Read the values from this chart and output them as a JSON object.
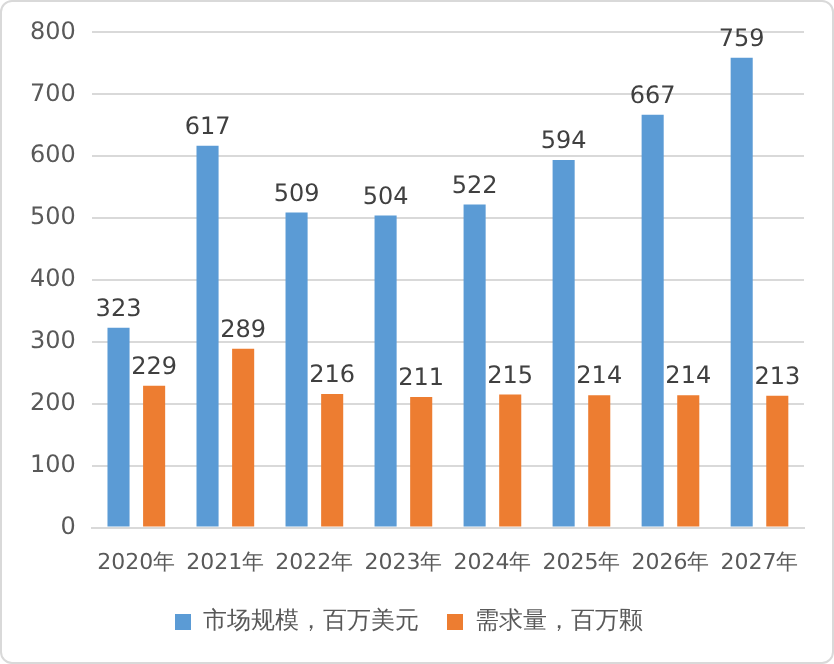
{
  "chart_data": {
    "type": "bar",
    "categories": [
      "2020年",
      "2021年",
      "2022年",
      "2023年",
      "2024年",
      "2025年",
      "2026年",
      "2027年"
    ],
    "series": [
      {
        "name": "市场规模，百万美元",
        "color": "#5b9bd5",
        "values": [
          323,
          617,
          509,
          504,
          522,
          594,
          667,
          759
        ]
      },
      {
        "name": "需求量，百万颗",
        "color": "#ed7d31",
        "values": [
          229,
          289,
          216,
          211,
          215,
          214,
          214,
          213
        ]
      }
    ],
    "ylim": [
      0,
      800
    ],
    "yticks": [
      0,
      100,
      200,
      300,
      400,
      500,
      600,
      700,
      800
    ],
    "grid": "y",
    "legend": "bottom",
    "data_labels": true
  }
}
